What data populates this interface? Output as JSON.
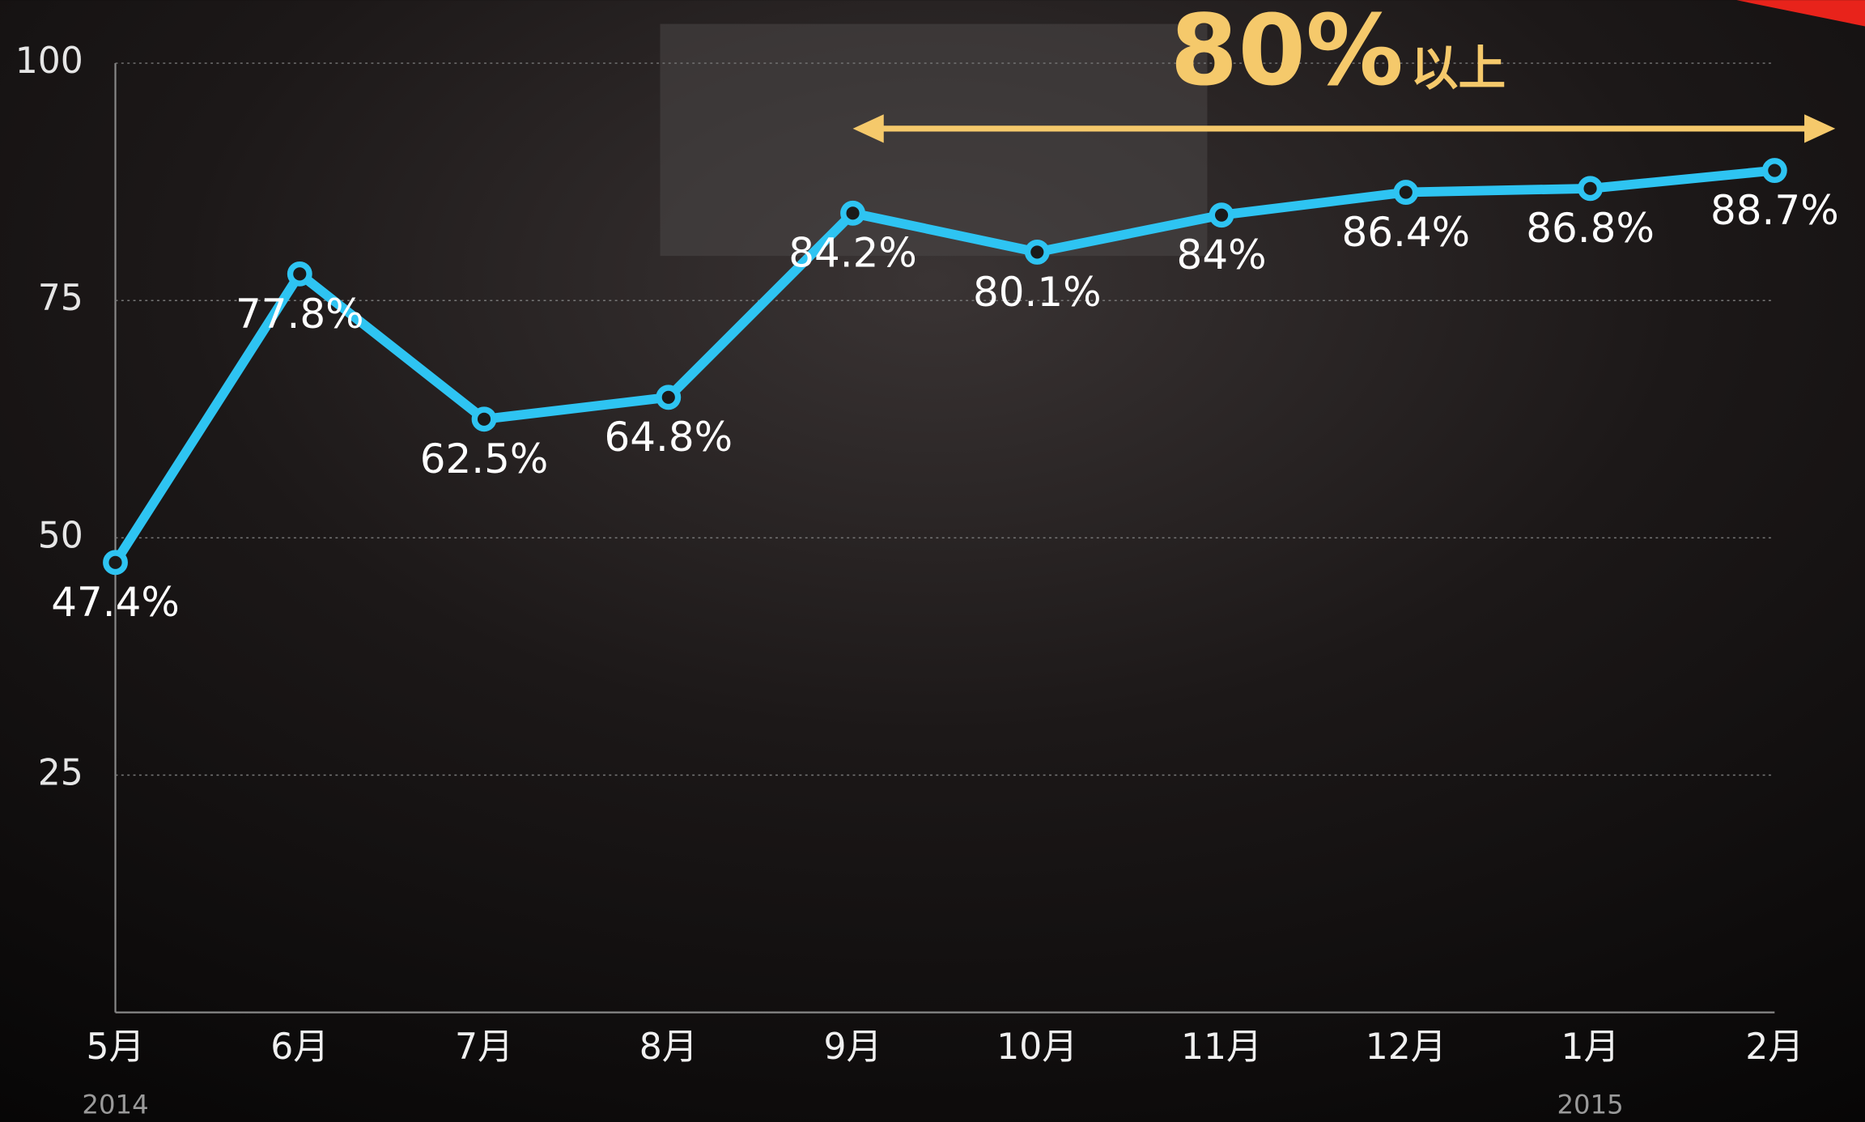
{
  "chart_data": {
    "type": "line",
    "categories": [
      "5月",
      "6月",
      "7月",
      "8月",
      "9月",
      "10月",
      "11月",
      "12月",
      "1月",
      "2月"
    ],
    "year_labels": [
      "2014",
      null,
      null,
      null,
      null,
      null,
      null,
      null,
      "2015",
      null
    ],
    "series": [
      {
        "color": "#2ec4f2",
        "values": [
          47.4,
          77.8,
          62.5,
          64.8,
          84.2,
          80.1,
          84,
          86.4,
          86.8,
          88.7
        ],
        "value_labels": [
          "47.4%",
          "77.8%",
          "62.5%",
          "64.8%",
          "84.2%",
          "80.1%",
          "84%",
          "86.4%",
          "86.8%",
          "88.7%"
        ]
      }
    ],
    "ylim": [
      0,
      100
    ],
    "yticks": [
      25,
      50,
      75,
      100
    ],
    "grid": true,
    "annotation": {
      "text": "80%",
      "suffix": "以上",
      "color": "#f5c96b"
    }
  }
}
